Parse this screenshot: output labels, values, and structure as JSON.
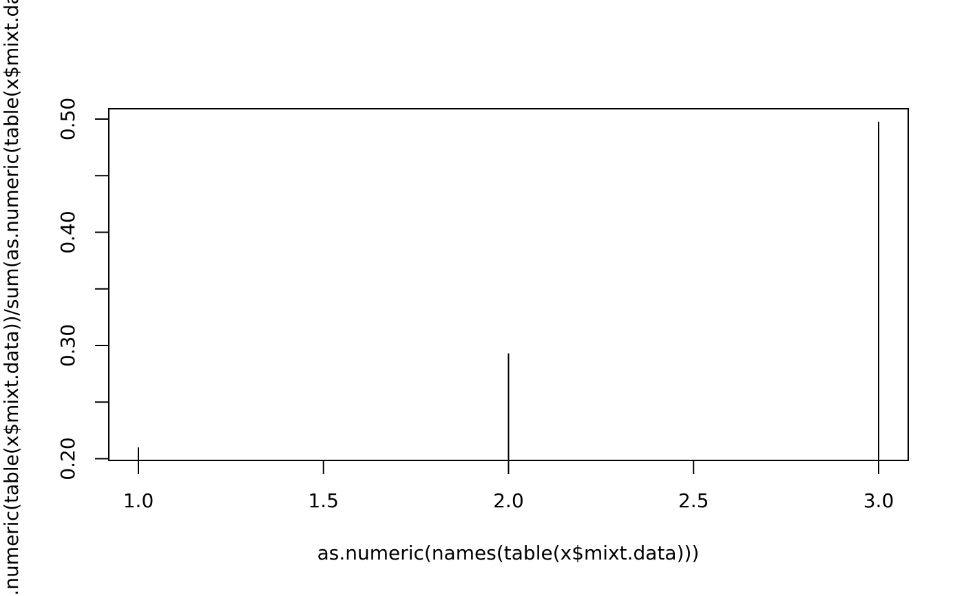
{
  "chart_data": {
    "type": "stem",
    "xlabel": "as.numeric(names(table(x$mixt.data)))",
    "ylabel": "as.numeric(table(x$mixt.data))/sum(as.numeric(table(x$mixt.data)))",
    "x": [
      1,
      2,
      3
    ],
    "values": [
      0.21,
      0.293,
      0.4976
    ],
    "color": "#000000",
    "xlim": [
      0.92,
      3.08
    ],
    "ylim": [
      0.1985,
      0.5091
    ],
    "xticks": [
      {
        "value": 1,
        "label": "1.0"
      },
      1.5,
      {
        "value": 2,
        "label": "2.0"
      },
      2.5,
      {
        "value": 3,
        "label": "3.0"
      }
    ],
    "yticks": [
      {
        "value": 0.2,
        "label": "0.20"
      },
      {
        "value": 0.3,
        "label": "0.30"
      },
      {
        "value": 0.4,
        "label": "0.40"
      },
      {
        "value": 0.5,
        "label": "0.50"
      }
    ],
    "yminor_ticks": [
      0.25,
      0.35,
      0.45
    ]
  }
}
